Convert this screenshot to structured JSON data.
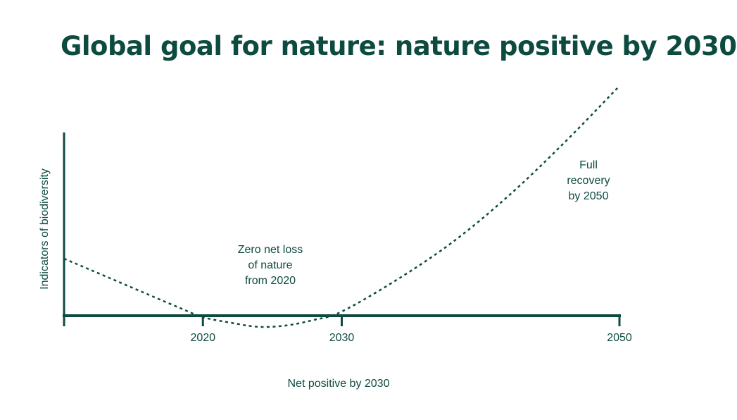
{
  "colors": {
    "primary": "#0d4b41"
  },
  "chart_data": {
    "type": "line",
    "title": "Global goal for nature: nature positive by 2030",
    "xlabel": "Net positive by 2030",
    "ylabel": "Indicators of biodiversity",
    "x_ticks": [
      2020,
      2030,
      2050
    ],
    "x_tick_labels": [
      "2020",
      "2030",
      "2050"
    ],
    "xlim": [
      2010,
      2050
    ],
    "ylim": [
      -1,
      20
    ],
    "grid": false,
    "legend": "none",
    "series": [
      {
        "style": "dotted",
        "x": [
          2010,
          2014,
          2018,
          2020,
          2022,
          2024,
          2026,
          2028,
          2030,
          2034,
          2038,
          2042,
          2046,
          2050
        ],
        "y": [
          4.1,
          2.4,
          0.7,
          -0.1,
          -0.5,
          -0.8,
          -0.7,
          -0.3,
          0.3,
          2.6,
          5.3,
          8.6,
          12.4,
          16.5
        ]
      }
    ],
    "annotations": [
      {
        "lines": [
          "Zero net loss",
          "of nature",
          "from 2020"
        ]
      },
      {
        "lines": [
          "Full",
          "recovery",
          "by 2050"
        ]
      }
    ]
  }
}
